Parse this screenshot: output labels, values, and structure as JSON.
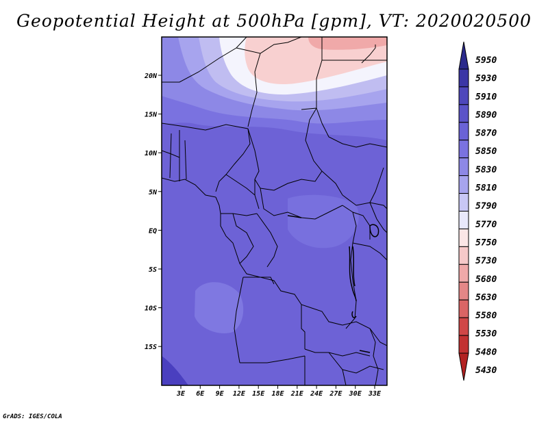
{
  "title": "Geopotential Height at 500hPa [gpm], VT: 2020020500",
  "credit": "GrADS: IGES/COLA",
  "map": {
    "lat_labels": [
      "20N",
      "15N",
      "10N",
      "5N",
      "EQ",
      "5S",
      "10S",
      "15S"
    ],
    "lon_labels": [
      "3E",
      "6E",
      "9E",
      "12E",
      "15E",
      "18E",
      "21E",
      "24E",
      "27E",
      "30E",
      "33E"
    ]
  },
  "colorbar": {
    "levels": [
      "5950",
      "5930",
      "5910",
      "5890",
      "5870",
      "5850",
      "5830",
      "5810",
      "5790",
      "5770",
      "5750",
      "5730",
      "5680",
      "5630",
      "5580",
      "5530",
      "5480",
      "5430"
    ],
    "colors": [
      "#2b2a8c",
      "#3b36a6",
      "#4e47bb",
      "#5b53c8",
      "#6a62d6",
      "#7a72e0",
      "#8d88e6",
      "#a7a4ee",
      "#c8c7f5",
      "#e8e8fb",
      "#fbe6e6",
      "#f6c9c9",
      "#efa9a9",
      "#e48787",
      "#da6565",
      "#d04747",
      "#c23232",
      "#b22222"
    ]
  },
  "fields": {
    "background": "#6d62d6",
    "sw_corner": "#4a3fbf",
    "north_pink": "#f8d0d0",
    "north_white": "#f4f4fd",
    "north_lavender": "#c0bdf1"
  }
}
